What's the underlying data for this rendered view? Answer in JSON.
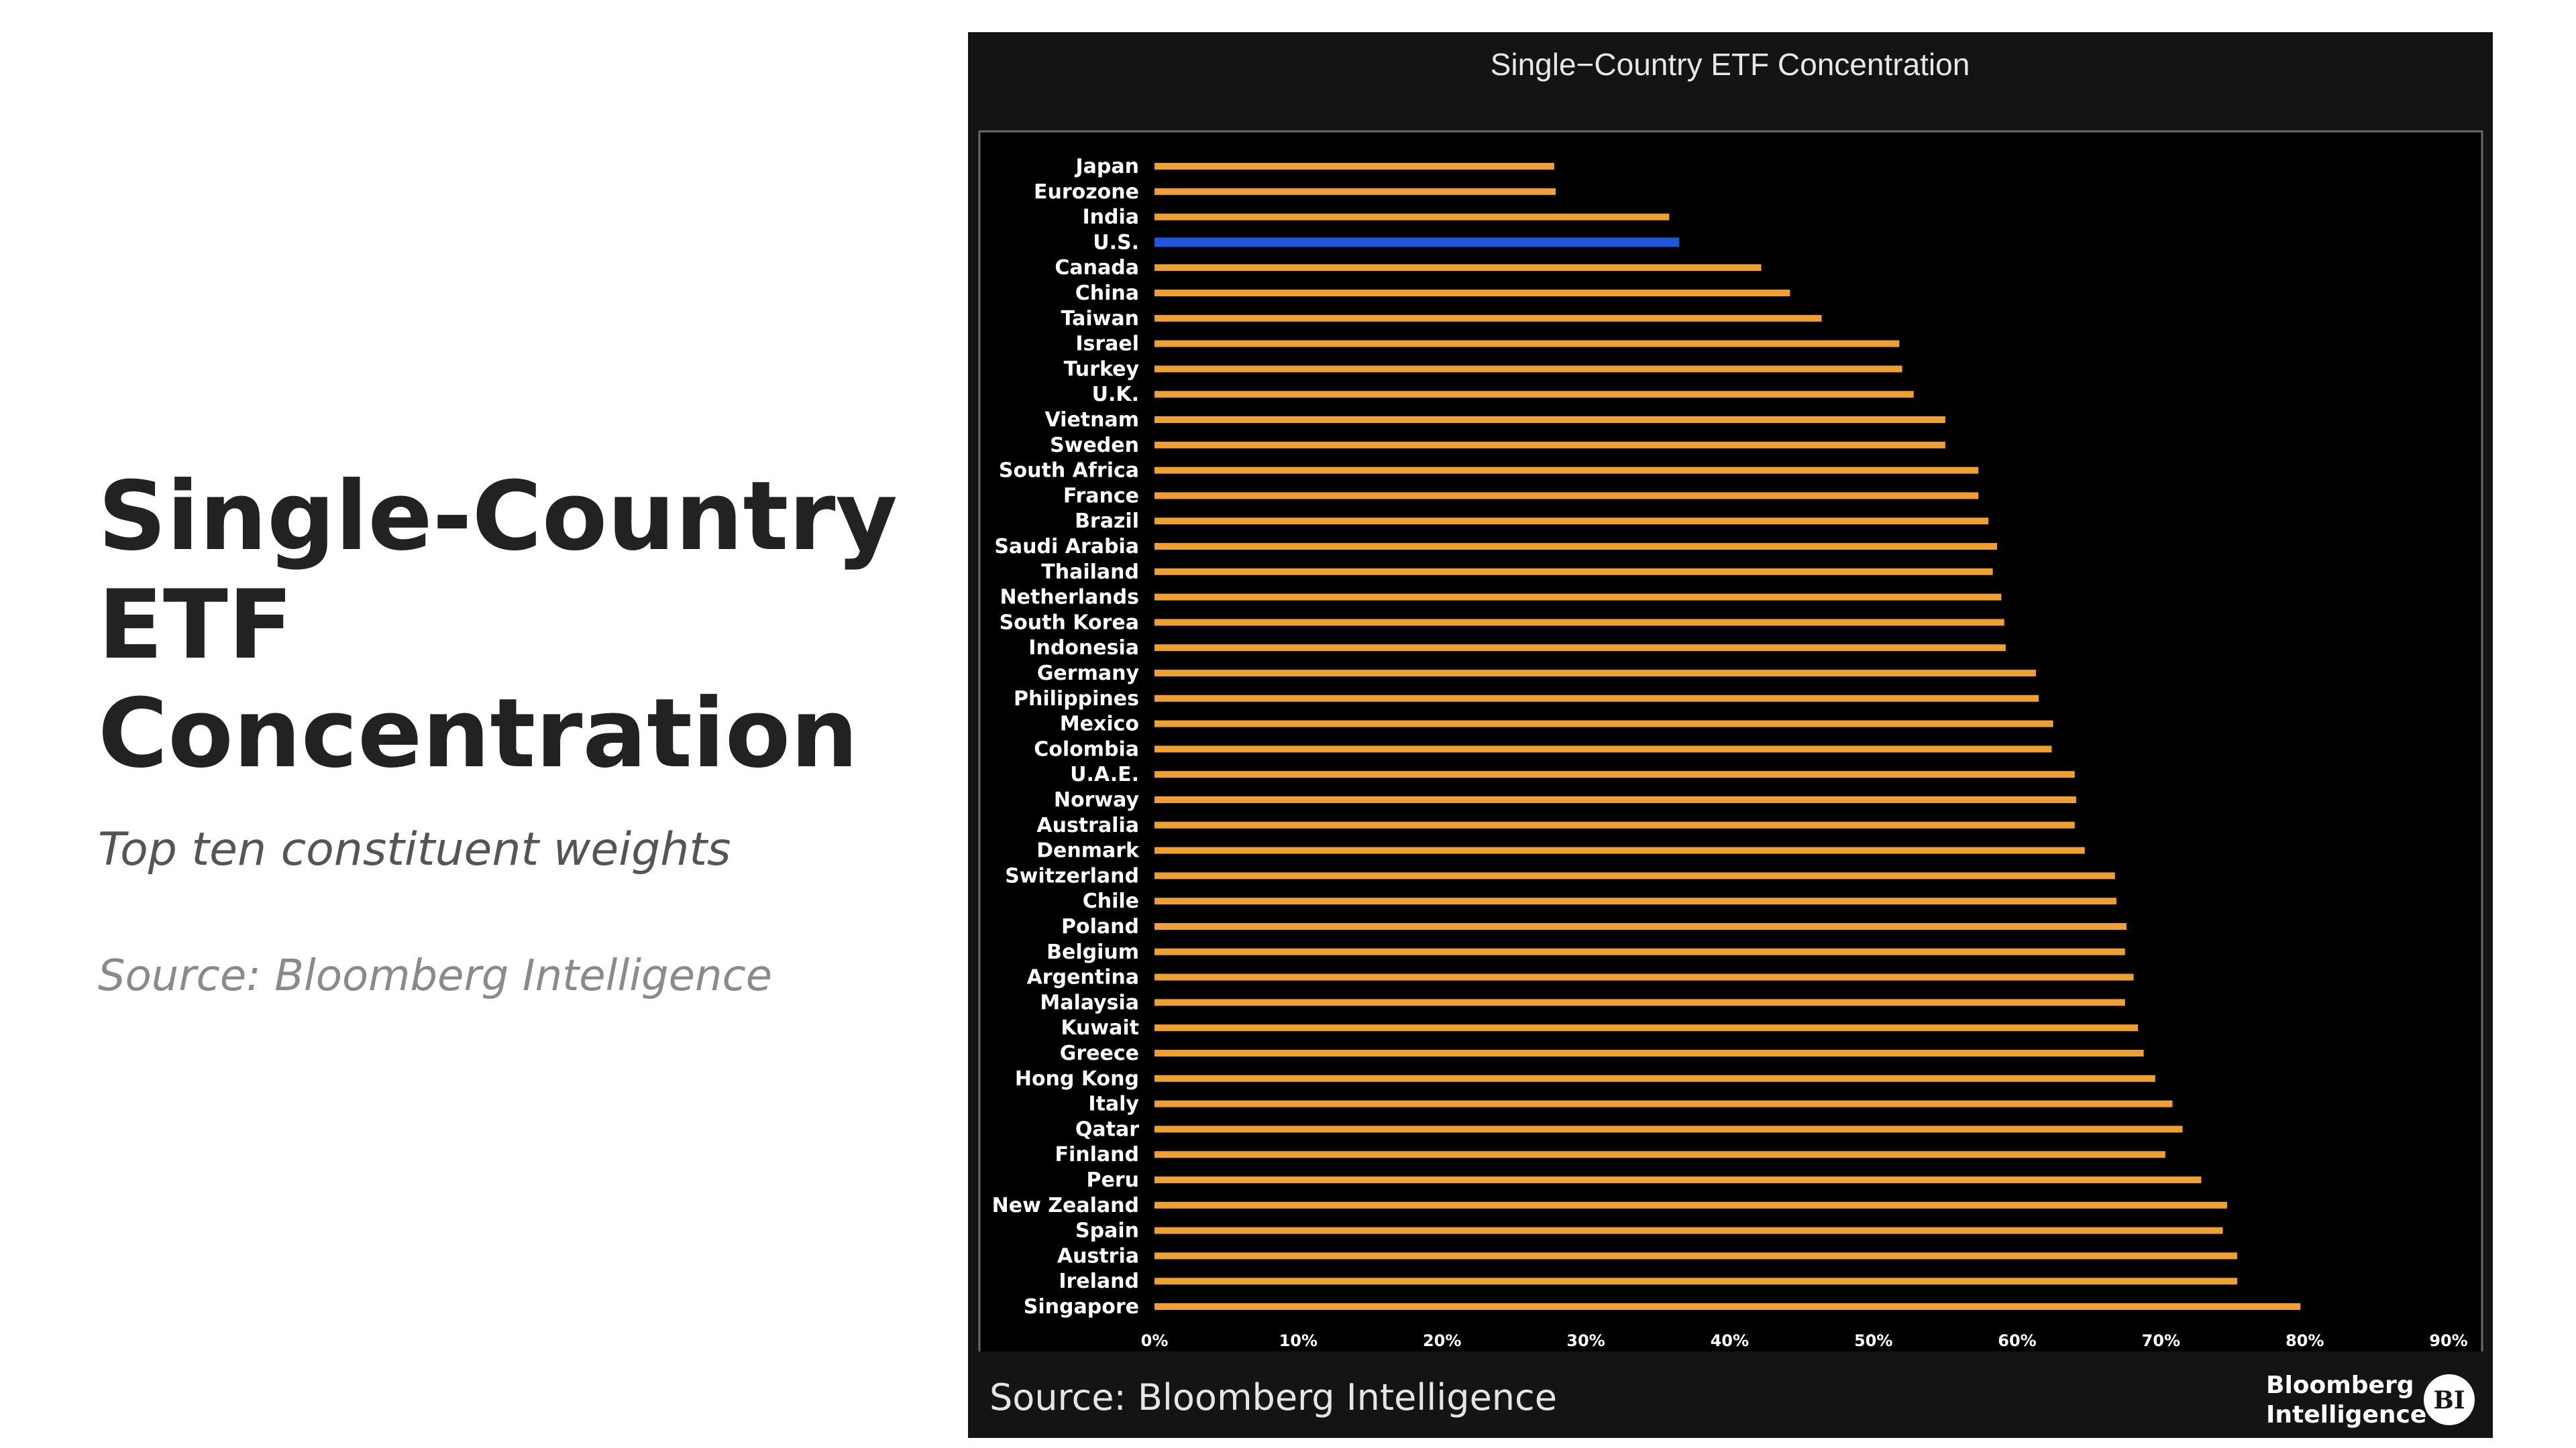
{
  "slide": {
    "title": "Single-Country ETF Concentration",
    "subtitle": "Top ten constituent weights",
    "source": "Source: Bloomberg Intelligence"
  },
  "chart_box": {
    "source": "Source: Bloomberg Intelligence",
    "brand_line1": "Bloomberg",
    "brand_line2": "Intelligence",
    "brand_badge": "BI"
  },
  "colors": {
    "bar": "#f0a030",
    "highlight": "#2255dd",
    "plot_background": "#000000",
    "frame_background": "#141414"
  },
  "chart_data": {
    "type": "bar",
    "orientation": "horizontal",
    "title": "Single−Country ETF Concentration",
    "xlim": [
      0,
      90
    ],
    "x_ticks": [
      0,
      10,
      20,
      30,
      40,
      50,
      60,
      70,
      80,
      90
    ],
    "x_tick_labels": [
      "0%",
      "10%",
      "20%",
      "30%",
      "40%",
      "50%",
      "60%",
      "70%",
      "80%",
      "90%"
    ],
    "highlight_category": "U.S.",
    "grid": false,
    "legend": "none",
    "categories": [
      "Japan",
      "Eurozone",
      "India",
      "U.S.",
      "Canada",
      "China",
      "Taiwan",
      "Israel",
      "Turkey",
      "U.K.",
      "Vietnam",
      "Sweden",
      "South Africa",
      "France",
      "Brazil",
      "Saudi Arabia",
      "Thailand",
      "Netherlands",
      "South Korea",
      "Indonesia",
      "Germany",
      "Philippines",
      "Mexico",
      "Colombia",
      "U.A.E.",
      "Norway",
      "Australia",
      "Denmark",
      "Switzerland",
      "Chile",
      "Poland",
      "Belgium",
      "Argentina",
      "Malaysia",
      "Kuwait",
      "Greece",
      "Hong Kong",
      "Italy",
      "Qatar",
      "Finland",
      "Peru",
      "New Zealand",
      "Spain",
      "Austria",
      "Ireland",
      "Singapore"
    ],
    "values": [
      27.8,
      27.9,
      35.8,
      36.5,
      42.2,
      44.2,
      46.4,
      51.8,
      52.0,
      52.8,
      55.0,
      55.0,
      57.3,
      57.3,
      58.0,
      58.6,
      58.3,
      58.9,
      59.1,
      59.2,
      61.3,
      61.5,
      62.5,
      62.4,
      64.0,
      64.1,
      64.0,
      64.7,
      66.8,
      66.9,
      67.6,
      67.5,
      68.1,
      67.5,
      68.4,
      68.8,
      69.6,
      70.8,
      71.5,
      70.3,
      72.8,
      74.6,
      74.3,
      75.3,
      75.3,
      79.7
    ]
  }
}
